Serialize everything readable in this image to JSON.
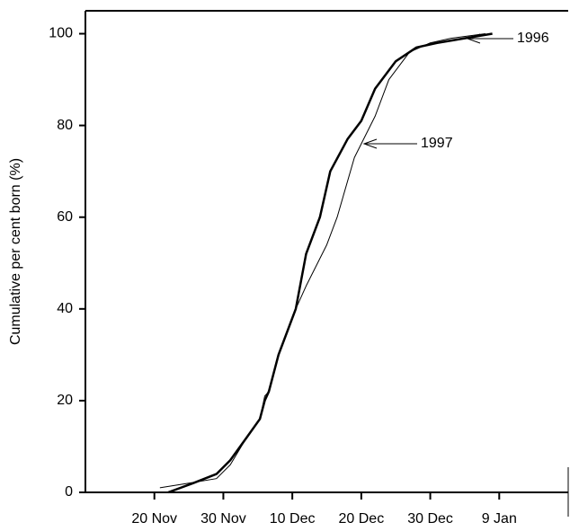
{
  "chart_data": {
    "type": "line",
    "y_label": "Cumulative per cent born (%)",
    "annotations": [
      "1996",
      "1997"
    ],
    "xlim": [
      -10,
      60
    ],
    "ylim": [
      0,
      105
    ],
    "xticks": [
      {
        "value": 0,
        "label": "20 Nov"
      },
      {
        "value": 10,
        "label": "30 Nov"
      },
      {
        "value": 20,
        "label": "10 Dec"
      },
      {
        "value": 30,
        "label": "20 Dec"
      },
      {
        "value": 40,
        "label": "30 Dec"
      },
      {
        "value": 50,
        "label": "9 Jan"
      }
    ],
    "yticks": [
      0,
      20,
      40,
      60,
      80,
      100
    ],
    "series": [
      {
        "name": "1996",
        "color": "#000000",
        "width": 2.5,
        "x": [
          2,
          5.6,
          9,
          11,
          13.4,
          15.3,
          16,
          16.6,
          18,
          20.5,
          22,
          24,
          25.5,
          28,
          30,
          32,
          35,
          38,
          41,
          45,
          49
        ],
        "values": [
          0,
          2,
          4,
          7,
          12,
          16,
          20,
          22,
          30,
          40,
          52,
          60,
          70,
          77,
          81,
          88,
          94,
          97,
          98,
          99,
          100
        ]
      },
      {
        "name": "1997",
        "color": "#000000",
        "width": 1,
        "x": [
          0.8,
          5,
          9,
          11,
          13.4,
          15.3,
          16,
          16.6,
          18,
          20.5,
          22,
          25,
          26.5,
          29,
          32,
          34,
          37,
          40,
          43,
          48
        ],
        "values": [
          1,
          2,
          3,
          6,
          12,
          16,
          21,
          22,
          30,
          40,
          45,
          54,
          60,
          73,
          82,
          90,
          96,
          98,
          99,
          100
        ]
      }
    ]
  }
}
